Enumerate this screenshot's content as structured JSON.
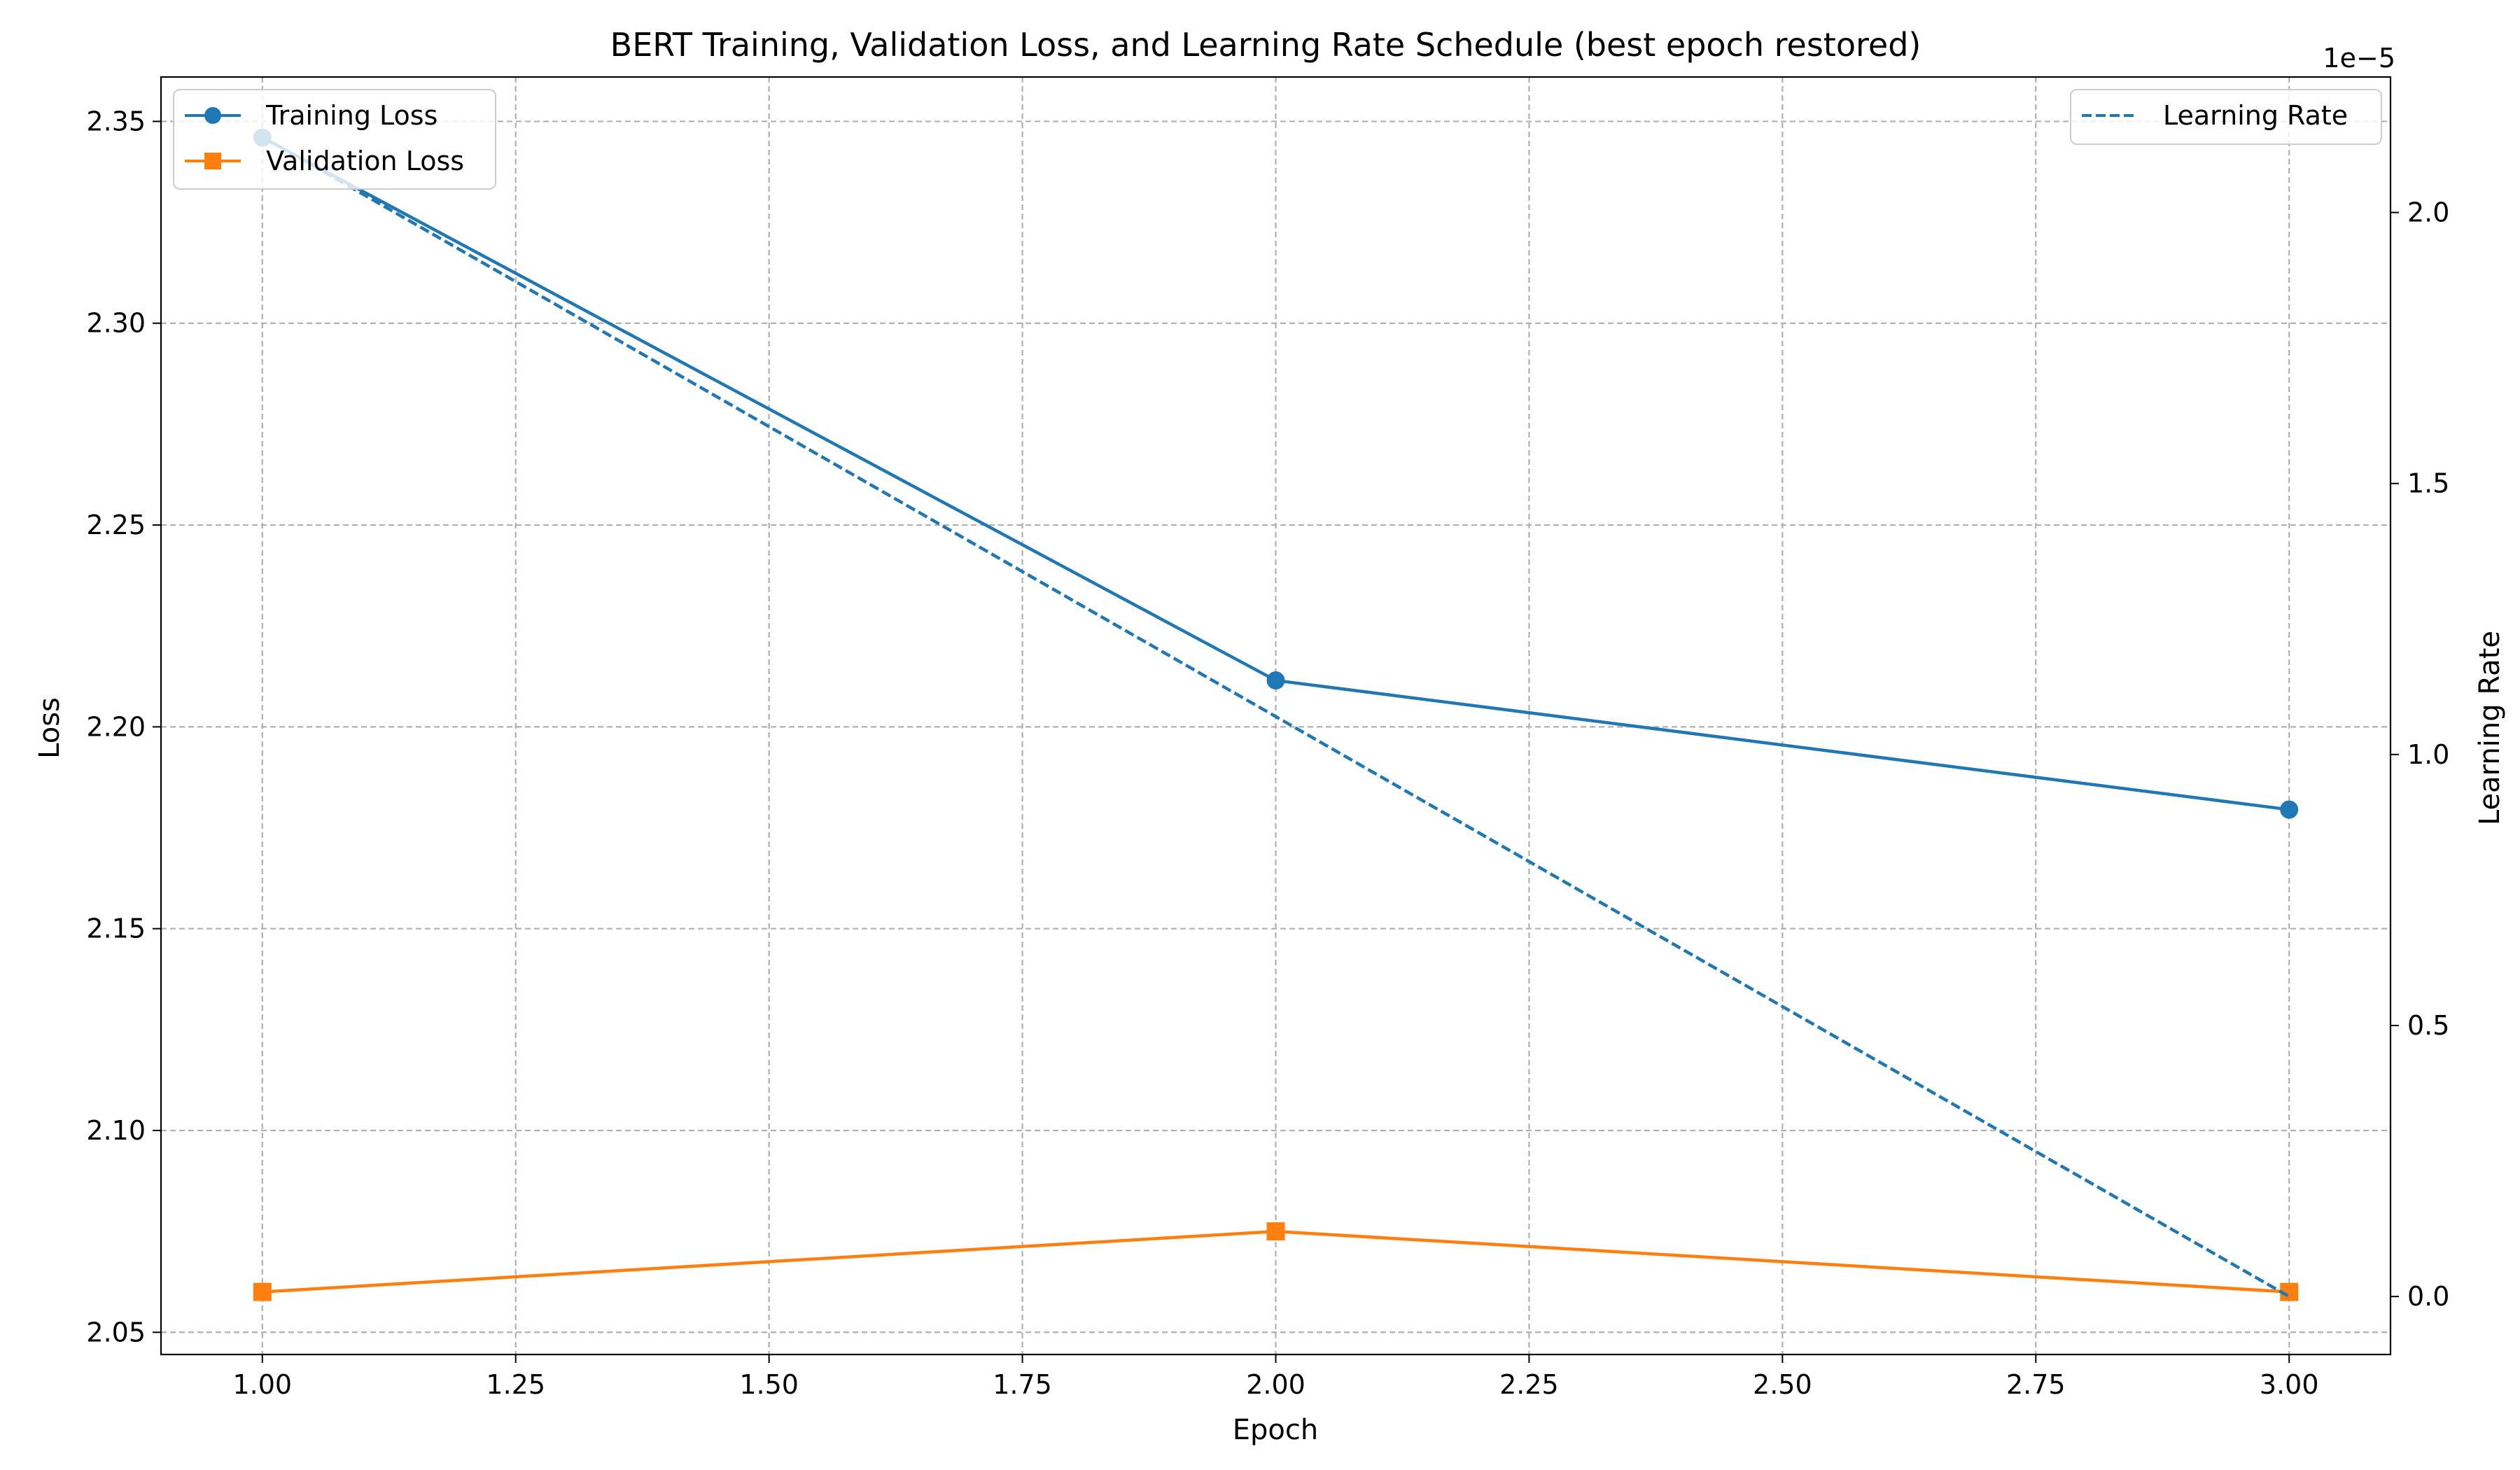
{
  "chart_data": {
    "type": "line",
    "title": "BERT Training, Validation Loss, and Learning Rate Schedule (best epoch restored)",
    "xlabel": "Epoch",
    "ylabel_left": "Loss",
    "ylabel_right": "Learning Rate",
    "right_axis_offset": "1e−5",
    "xlim": [
      0.9,
      3.1
    ],
    "ylim_left": [
      2.0445,
      2.361
    ],
    "ylim_right": [
      -1.07e-06,
      2.25e-05
    ],
    "x_ticks": [
      1.0,
      1.25,
      1.5,
      1.75,
      2.0,
      2.25,
      2.5,
      2.75,
      3.0
    ],
    "x_tick_labels": [
      "1.00",
      "1.25",
      "1.50",
      "1.75",
      "2.00",
      "2.25",
      "2.50",
      "2.75",
      "3.00"
    ],
    "y_left_ticks": [
      2.05,
      2.1,
      2.15,
      2.2,
      2.25,
      2.3,
      2.35
    ],
    "y_left_tick_labels": [
      "2.05",
      "2.10",
      "2.15",
      "2.20",
      "2.25",
      "2.30",
      "2.35"
    ],
    "y_right_ticks": [
      0.0,
      5e-06,
      1e-05,
      1.5e-05,
      2e-05
    ],
    "y_right_tick_labels": [
      "0.0",
      "0.5",
      "1.0",
      "1.5",
      "2.0"
    ],
    "grid": true,
    "x": [
      1,
      2,
      3
    ],
    "series": [
      {
        "name": "Training Loss",
        "axis": "left",
        "values": [
          2.346,
          2.2115,
          2.1795
        ],
        "color": "#1f77b4",
        "marker": "circle",
        "linestyle": "solid"
      },
      {
        "name": "Validation Loss",
        "axis": "left",
        "values": [
          2.06,
          2.075,
          2.06
        ],
        "color": "#ff7f0e",
        "marker": "square",
        "linestyle": "solid"
      },
      {
        "name": "Learning Rate",
        "axis": "right",
        "values": [
          2.14e-05,
          1.07e-05,
          0.0
        ],
        "color": "#1f77b4",
        "marker": "none",
        "linestyle": "dashed"
      }
    ],
    "legend_left": {
      "placement": "top-left",
      "entries": [
        "Training Loss",
        "Validation Loss"
      ]
    },
    "legend_right": {
      "placement": "top-right",
      "entries": [
        "Learning Rate"
      ]
    }
  }
}
